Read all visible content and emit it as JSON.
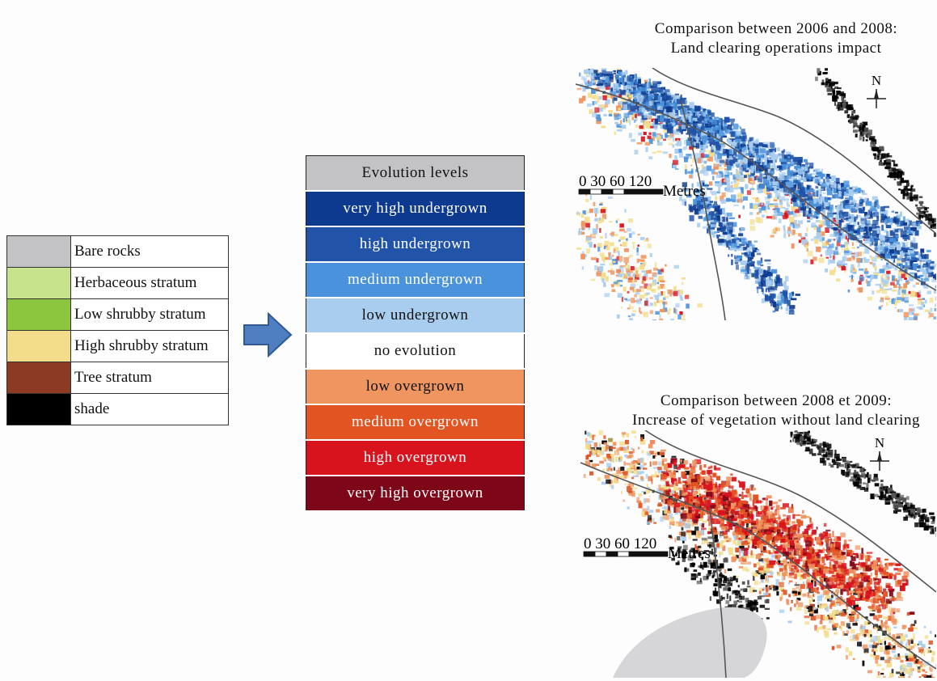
{
  "strata_legend": [
    {
      "label": "Bare rocks",
      "color": "#c3c2c4"
    },
    {
      "label": "Herbaceous stratum",
      "color": "#c7e48c"
    },
    {
      "label": "Low shrubby stratum",
      "color": "#8cc63e"
    },
    {
      "label": "High shrubby stratum",
      "color": "#f3dd8a"
    },
    {
      "label": "Tree stratum",
      "color": "#8d3a24"
    },
    {
      "label": "shade",
      "color": "#000000"
    }
  ],
  "evolution_legend": {
    "header": {
      "label": "Evolution levels",
      "color": "#c3c2c4"
    },
    "levels": [
      {
        "label": "very high undergrown",
        "color": "#0d3a8e",
        "text_color": "#ffffff"
      },
      {
        "label": "high undergrown",
        "color": "#2154a8",
        "text_color": "#ffffff"
      },
      {
        "label": "medium undergrown",
        "color": "#4a93dc",
        "text_color": "#ffffff"
      },
      {
        "label": "low undergrown",
        "color": "#a8cdef",
        "text_color": "#111111"
      },
      {
        "label": "no evolution",
        "color": "#ffffff",
        "text_color": "#111111"
      },
      {
        "label": "low overgrown",
        "color": "#ef9560",
        "text_color": "#111111"
      },
      {
        "label": "medium overgrown",
        "color": "#e25422",
        "text_color": "#ffffff"
      },
      {
        "label": "high overgrown",
        "color": "#d8131d",
        "text_color": "#ffffff"
      },
      {
        "label": "very high overgrown",
        "color": "#7d0718",
        "text_color": "#ffffff"
      }
    ]
  },
  "maps": [
    {
      "title_line1": "Comparison between 2006 and 2008:",
      "title_line2": "Land clearing operations impact",
      "north": "N",
      "scale_ticks": "0 30 60   120",
      "scale_unit": "Metres"
    },
    {
      "title_line1": "Comparison between 2008 et 2009:",
      "title_line2": "Increase of vegetation without land clearing",
      "north": "N",
      "scale_ticks": "0 30 60   120",
      "scale_unit": "Metres"
    }
  ]
}
